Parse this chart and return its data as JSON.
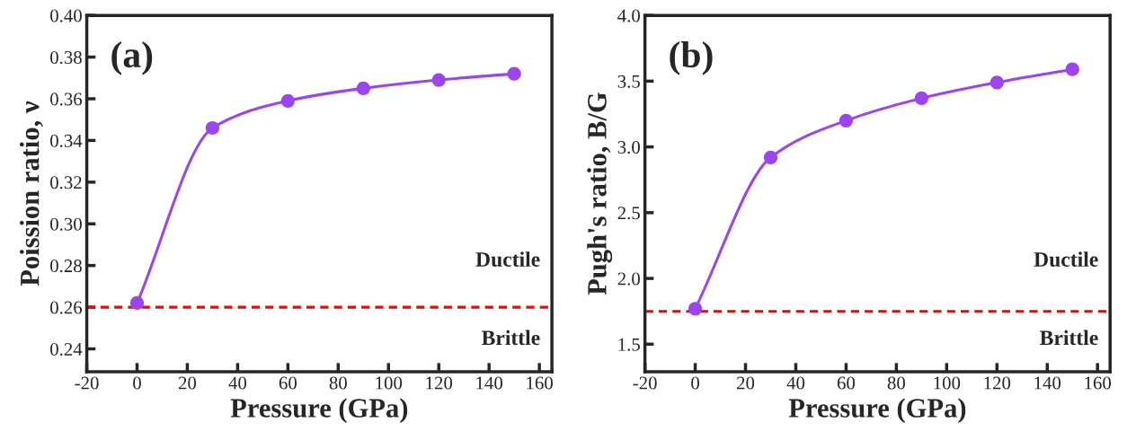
{
  "chart_data": [
    {
      "type": "line",
      "xlabel": "Pressure (GPa)",
      "ylabel": "Poission ratio, ν",
      "x": [
        0,
        30,
        60,
        90,
        120,
        150
      ],
      "series": [
        {
          "color": "#9b45f0",
          "values": [
            0.262,
            0.346,
            0.359,
            0.365,
            0.369,
            0.372
          ]
        }
      ],
      "marker": "circle",
      "line_style": "solid",
      "grid": false,
      "legend": false,
      "xlim": [
        -20,
        165
      ],
      "xticks": [
        -20,
        0,
        20,
        40,
        60,
        80,
        100,
        120,
        140,
        160
      ],
      "ylim": [
        0.229,
        0.4
      ],
      "yticks": [
        0.24,
        0.26,
        0.28,
        {
          "value": 0.3,
          "label": "0.30"
        },
        0.32,
        0.34,
        0.36,
        0.38,
        {
          "value": 0.4,
          "label": "0.40"
        }
      ],
      "ref_lines": [
        {
          "axis": "y",
          "value": 0.26,
          "color": "#ff0000",
          "line_style": "dashed"
        }
      ],
      "annotations": [
        "(a)",
        "Ductile",
        "Brittle"
      ]
    },
    {
      "type": "line",
      "xlabel": "Pressure (GPa)",
      "ylabel": "Pugh's ratio, B/G",
      "x": [
        0,
        30,
        60,
        90,
        120,
        150
      ],
      "series": [
        {
          "color": "#9b45f0",
          "values": [
            1.77,
            2.92,
            3.2,
            3.37,
            3.49,
            3.59
          ]
        }
      ],
      "marker": "circle",
      "line_style": "solid",
      "grid": false,
      "legend": false,
      "xlim": [
        -20,
        165
      ],
      "xticks": [
        -20,
        0,
        20,
        40,
        60,
        80,
        100,
        120,
        140,
        160
      ],
      "ylim": [
        1.29,
        4.0
      ],
      "yticks": [
        1.5,
        {
          "value": 2.0,
          "label": "2.0"
        },
        2.5,
        {
          "value": 3.0,
          "label": "3.0"
        },
        3.5,
        {
          "value": 4.0,
          "label": "4.0"
        }
      ],
      "ref_lines": [
        {
          "axis": "y",
          "value": 1.75,
          "color": "#ff0000",
          "line_style": "dashed"
        }
      ],
      "annotations": [
        "(b)",
        "Ductile",
        "Brittle"
      ]
    }
  ]
}
